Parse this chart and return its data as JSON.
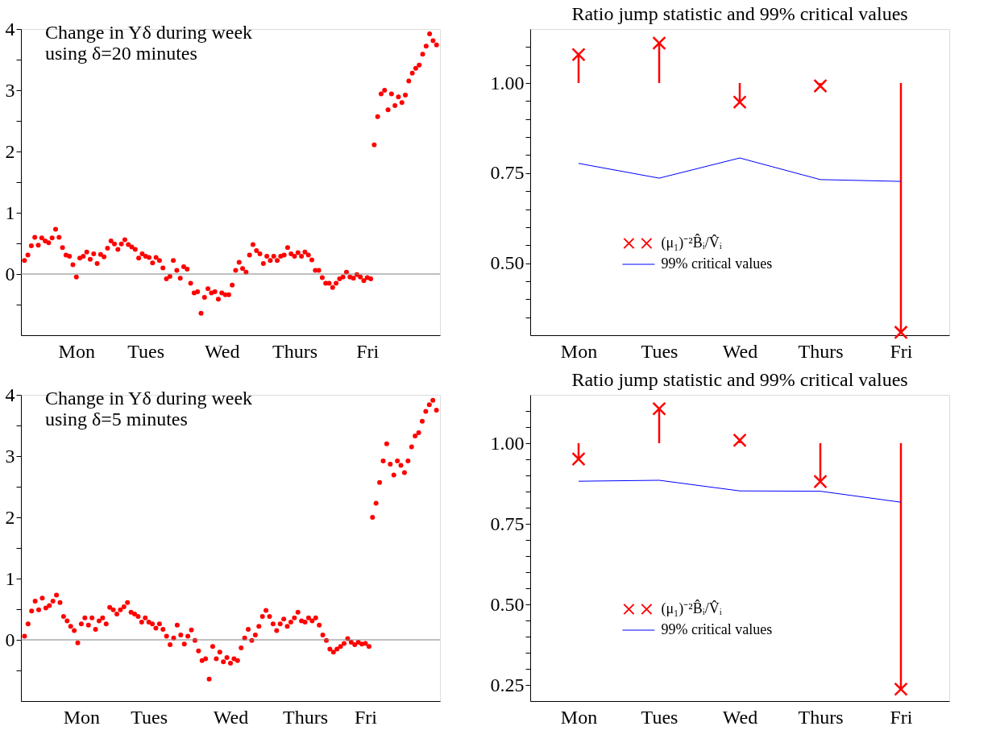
{
  "chart_data": [
    {
      "type": "scatter",
      "title": "Change in Yδ during week",
      "subtitle": "using δ=20 minutes",
      "color": "#ff0000",
      "marker": "circle",
      "categories": [
        null,
        null,
        null,
        null,
        null,
        null,
        null,
        null,
        null,
        null,
        null,
        null,
        null,
        null,
        null,
        "Mon",
        null,
        null,
        null,
        null,
        null,
        null,
        null,
        null,
        null,
        null,
        null,
        null,
        null,
        null,
        null,
        null,
        null,
        null,
        null,
        "Tues",
        null,
        null,
        null,
        null,
        null,
        null,
        null,
        null,
        null,
        null,
        null,
        null,
        null,
        null,
        null,
        null,
        null,
        null,
        null,
        null,
        null,
        "Wed",
        null,
        null,
        null,
        null,
        null,
        null,
        null,
        null,
        null,
        null,
        null,
        null,
        null,
        null,
        null,
        null,
        null,
        null,
        null,
        null,
        "Thurs",
        null,
        null,
        null,
        null,
        null,
        null,
        null,
        null,
        null,
        null,
        null,
        null,
        null,
        null,
        null,
        null,
        null,
        null,
        null,
        null,
        "Fri",
        null,
        null,
        null,
        null,
        null,
        null,
        null,
        null,
        null,
        null,
        null,
        null,
        null,
        null,
        null,
        null,
        null,
        null,
        null,
        null
      ],
      "values": [
        0.22,
        0.31,
        0.46,
        0.6,
        0.47,
        0.59,
        0.54,
        0.51,
        0.59,
        0.73,
        0.6,
        0.43,
        0.31,
        0.29,
        0.15,
        -0.05,
        0.26,
        0.29,
        0.36,
        0.24,
        0.33,
        0.17,
        0.32,
        0.28,
        0.42,
        0.54,
        0.49,
        0.4,
        0.49,
        0.56,
        0.48,
        0.44,
        0.4,
        0.26,
        0.33,
        0.29,
        0.27,
        0.18,
        0.27,
        0.22,
        0.1,
        -0.08,
        -0.04,
        0.22,
        0.06,
        -0.07,
        0.12,
        0.08,
        -0.15,
        -0.31,
        -0.29,
        -0.64,
        -0.38,
        -0.24,
        -0.31,
        -0.29,
        -0.41,
        -0.31,
        -0.34,
        -0.34,
        -0.18,
        0.06,
        0.19,
        0.09,
        0.03,
        0.31,
        0.48,
        0.38,
        0.33,
        0.17,
        0.29,
        0.22,
        0.29,
        0.22,
        0.29,
        0.31,
        0.43,
        0.33,
        0.29,
        0.35,
        0.29,
        0.36,
        0.31,
        0.23,
        0.06,
        0.06,
        -0.06,
        -0.15,
        -0.15,
        -0.22,
        -0.15,
        -0.08,
        -0.05,
        0.03,
        -0.05,
        -0.07,
        -0.01,
        -0.05,
        -0.11,
        -0.06,
        -0.08,
        2.11,
        2.57,
        2.94,
        3.0,
        2.68,
        2.94,
        2.75,
        2.89,
        2.8,
        2.92,
        3.15,
        3.28,
        3.36,
        3.41,
        3.59,
        3.72,
        3.92,
        3.81,
        3.74
      ],
      "ylim": [
        -1,
        4
      ],
      "yticks": [
        {
          "value": -0.5,
          "label": null
        },
        0,
        {
          "value": 0.5,
          "label": null
        },
        1,
        {
          "value": 1.5,
          "label": null
        },
        2,
        {
          "value": 2.5,
          "label": null
        },
        3,
        {
          "value": 3.5,
          "label": null
        },
        4
      ],
      "ref_lines": [
        {
          "axis": "y",
          "value": 0,
          "color": "#808080"
        }
      ]
    },
    {
      "type": "scatter",
      "title": "Ratio jump statistic and 99% critical values",
      "legend": "bottom",
      "categories": [
        "Mon",
        "Tues",
        "Wed",
        "Thurs",
        "Fri"
      ],
      "series": [
        {
          "name": "(μ₁)⁻²B̂ᵢ/V̂ᵢ",
          "type": "scatter",
          "marker": "cross",
          "color": "#ff0000",
          "values": [
            1.079,
            1.111,
            0.947,
            0.992,
            0.308
          ],
          "errors": [
            [
              1.0,
              1.079
            ],
            [
              1.0,
              1.111
            ],
            [
              0.947,
              1.0
            ],
            [
              0.992,
              1.0
            ],
            [
              0.308,
              1.0
            ]
          ]
        },
        {
          "name": "99% critical values",
          "type": "line",
          "color": "#0000ff",
          "values": [
            0.777,
            0.736,
            0.792,
            0.732,
            0.727
          ]
        }
      ],
      "ylim": [
        0.3,
        1.15
      ],
      "yticks": [
        {
          "value": 0.35,
          "label": null
        },
        {
          "value": 0.4,
          "label": null
        },
        {
          "value": 0.45,
          "label": null
        },
        {
          "value": 0.5,
          "label": "0.50"
        },
        {
          "value": 0.55,
          "label": null
        },
        {
          "value": 0.6,
          "label": null
        },
        {
          "value": 0.65,
          "label": null
        },
        {
          "value": 0.7,
          "label": null
        },
        0.75,
        {
          "value": 0.8,
          "label": null
        },
        {
          "value": 0.85,
          "label": null
        },
        {
          "value": 0.9,
          "label": null
        },
        {
          "value": 0.95,
          "label": null
        },
        {
          "value": 1.0,
          "label": "1.00"
        },
        {
          "value": 1.05,
          "label": null
        },
        {
          "value": 1.1,
          "label": null
        }
      ]
    },
    {
      "type": "scatter",
      "title": "Change in Yδ during week",
      "subtitle": "using δ=5 minutes",
      "color": "#ff0000",
      "marker": "circle",
      "categories": [
        null,
        null,
        null,
        null,
        null,
        null,
        null,
        null,
        null,
        null,
        null,
        null,
        null,
        null,
        null,
        null,
        "Mon",
        null,
        null,
        null,
        null,
        null,
        null,
        null,
        null,
        null,
        null,
        null,
        null,
        null,
        null,
        null,
        null,
        null,
        null,
        "Tues",
        null,
        null,
        null,
        null,
        null,
        null,
        null,
        null,
        null,
        null,
        null,
        null,
        null,
        null,
        null,
        null,
        null,
        null,
        null,
        null,
        null,
        null,
        "Wed",
        null,
        null,
        null,
        null,
        null,
        null,
        null,
        null,
        null,
        null,
        null,
        null,
        null,
        null,
        null,
        null,
        null,
        null,
        null,
        null,
        "Thurs",
        null,
        null,
        null,
        null,
        null,
        null,
        null,
        null,
        null,
        null,
        null,
        null,
        null,
        null,
        null,
        null,
        "Fri",
        null,
        null,
        null,
        null,
        null,
        null,
        null,
        null,
        null,
        null,
        null,
        null,
        null,
        null,
        null,
        null,
        null,
        null,
        null,
        null
      ],
      "values": [
        0.06,
        0.26,
        0.47,
        0.63,
        0.49,
        0.68,
        0.52,
        0.56,
        0.63,
        0.73,
        0.61,
        0.38,
        0.31,
        0.22,
        0.15,
        -0.05,
        0.26,
        0.36,
        0.24,
        0.36,
        0.17,
        0.31,
        0.36,
        0.26,
        0.53,
        0.49,
        0.42,
        0.49,
        0.54,
        0.61,
        0.45,
        0.42,
        0.38,
        0.29,
        0.36,
        0.29,
        0.26,
        0.19,
        0.26,
        0.17,
        0.06,
        -0.08,
        0.03,
        0.24,
        0.08,
        -0.07,
        0.06,
        0.16,
        -0.01,
        -0.18,
        -0.34,
        -0.31,
        -0.64,
        -0.11,
        -0.31,
        -0.2,
        -0.36,
        -0.29,
        -0.38,
        -0.31,
        -0.34,
        -0.13,
        0.03,
        0.17,
        -0.01,
        0.08,
        0.22,
        0.38,
        0.48,
        0.38,
        0.26,
        0.15,
        0.26,
        0.34,
        0.22,
        0.29,
        0.36,
        0.45,
        0.31,
        0.29,
        0.36,
        0.31,
        0.36,
        0.24,
        0.08,
        -0.01,
        -0.15,
        -0.2,
        -0.15,
        -0.11,
        -0.06,
        0.02,
        -0.04,
        -0.08,
        -0.04,
        -0.07,
        -0.06,
        -0.11,
        2.0,
        2.23,
        2.57,
        2.92,
        3.2,
        2.87,
        2.69,
        2.92,
        2.85,
        2.73,
        2.92,
        3.15,
        3.33,
        3.38,
        3.57,
        3.73,
        3.84,
        3.91,
        3.75
      ],
      "ylim": [
        -1,
        4
      ],
      "yticks": [
        {
          "value": -0.5,
          "label": null
        },
        0,
        {
          "value": 0.5,
          "label": null
        },
        1,
        {
          "value": 1.5,
          "label": null
        },
        2,
        {
          "value": 2.5,
          "label": null
        },
        3,
        {
          "value": 3.5,
          "label": null
        },
        4
      ],
      "ref_lines": [
        {
          "axis": "y",
          "value": 0,
          "color": "#808080"
        }
      ]
    },
    {
      "type": "scatter",
      "title": "Ratio jump statistic and 99% critical values",
      "legend": "bottom",
      "categories": [
        "Mon",
        "Tues",
        "Wed",
        "Thurs",
        "Fri"
      ],
      "series": [
        {
          "name": "(μ₁)⁻²B̂ᵢ/V̂ᵢ",
          "type": "scatter",
          "marker": "cross",
          "color": "#ff0000",
          "values": [
            0.951,
            1.107,
            1.009,
            0.881,
            0.237
          ],
          "errors": [
            [
              0.951,
              1.0
            ],
            [
              1.0,
              1.107
            ],
            [
              1.0,
              1.009
            ],
            [
              0.881,
              1.0
            ],
            [
              0.237,
              1.0
            ]
          ]
        },
        {
          "name": "99% critical values",
          "type": "line",
          "color": "#0000ff",
          "values": [
            0.882,
            0.885,
            0.852,
            0.851,
            0.817
          ]
        }
      ],
      "ylim": [
        0.2,
        1.15
      ],
      "yticks": [
        0.25,
        {
          "value": 0.3,
          "label": null
        },
        {
          "value": 0.35,
          "label": null
        },
        {
          "value": 0.4,
          "label": null
        },
        {
          "value": 0.45,
          "label": null
        },
        {
          "value": 0.5,
          "label": "0.50"
        },
        {
          "value": 0.55,
          "label": null
        },
        {
          "value": 0.6,
          "label": null
        },
        {
          "value": 0.65,
          "label": null
        },
        {
          "value": 0.7,
          "label": null
        },
        0.75,
        {
          "value": 0.8,
          "label": null
        },
        {
          "value": 0.85,
          "label": null
        },
        {
          "value": 0.9,
          "label": null
        },
        {
          "value": 0.95,
          "label": null
        },
        {
          "value": 1.0,
          "label": "1.00"
        },
        {
          "value": 1.05,
          "label": null
        },
        {
          "value": 1.1,
          "label": null
        }
      ]
    }
  ]
}
